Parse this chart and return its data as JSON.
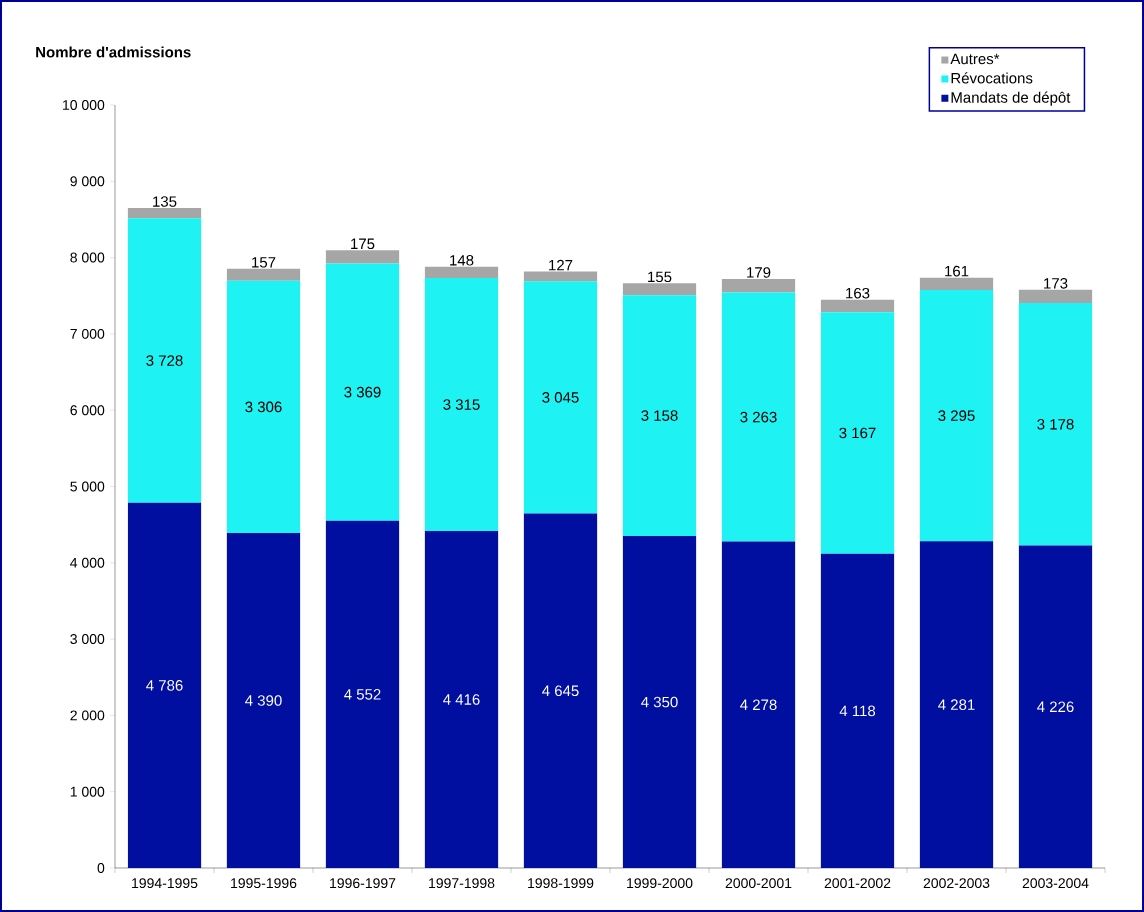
{
  "chart_data": {
    "type": "bar",
    "stacked": true,
    "ylabel": "Nombre d'admissions",
    "categories": [
      "1994-1995",
      "1995-1996",
      "1996-1997",
      "1997-1998",
      "1998-1999",
      "1999-2000",
      "2000-2001",
      "2001-2002",
      "2002-2003",
      "2003-2004"
    ],
    "series": [
      {
        "name": "Mandats de dépôt",
        "color": "#000f9f",
        "values": [
          4786,
          4390,
          4552,
          4416,
          4645,
          4350,
          4278,
          4118,
          4281,
          4226
        ],
        "value_labels": [
          "4 786",
          "4 390",
          "4 552",
          "4 416",
          "4 645",
          "4 350",
          "4 278",
          "4 118",
          "4 281",
          "4 226"
        ]
      },
      {
        "name": "Révocations",
        "color": "#1ef2f2",
        "values": [
          3728,
          3306,
          3369,
          3315,
          3045,
          3158,
          3263,
          3167,
          3295,
          3178
        ],
        "value_labels": [
          "3 728",
          "3 306",
          "3 369",
          "3 315",
          "3 045",
          "3 158",
          "3 263",
          "3 167",
          "3 295",
          "3 178"
        ]
      },
      {
        "name": "Autres*",
        "color": "#a6a6a6",
        "values": [
          135,
          157,
          175,
          148,
          127,
          155,
          179,
          163,
          161,
          173
        ],
        "value_labels": [
          "135",
          "157",
          "175",
          "148",
          "127",
          "155",
          "179",
          "163",
          "161",
          "173"
        ]
      }
    ],
    "ylim": [
      0,
      10000
    ],
    "yticks": [
      0,
      {
        "value": 1000,
        "label": "1 000"
      },
      {
        "value": 2000,
        "label": "2 000"
      },
      {
        "value": 3000,
        "label": "3 000"
      },
      {
        "value": 4000,
        "label": "4 000"
      },
      {
        "value": 5000,
        "label": "5 000"
      },
      {
        "value": 6000,
        "label": "6 000"
      },
      {
        "value": 7000,
        "label": "7 000"
      },
      {
        "value": 8000,
        "label": "8 000"
      },
      {
        "value": 9000,
        "label": "9 000"
      },
      {
        "value": 10000,
        "label": "10 000"
      }
    ],
    "grid": false,
    "legend": "top right"
  }
}
